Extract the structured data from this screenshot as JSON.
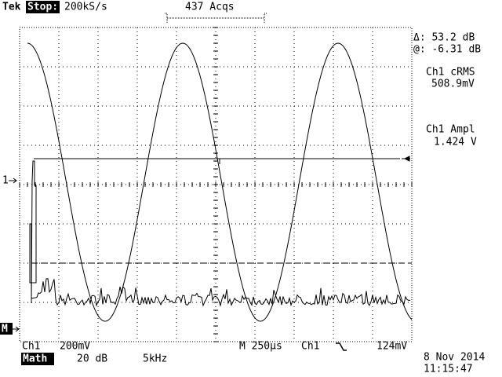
{
  "header": {
    "brand": "Tek",
    "status": "Stop:",
    "sample_rate": "200kS/s",
    "acquisitions": "437 Acqs"
  },
  "readouts": {
    "delta": "Δ: 53.2 dB",
    "at": "@: -6.31 dB",
    "measure1": {
      "label": "Ch1 cRMS",
      "value": "508.9mV"
    },
    "measure2": {
      "label": "Ch1 Ampl",
      "value": "1.424 V"
    }
  },
  "markers": {
    "channel": "1",
    "math": "M"
  },
  "footer": {
    "channel": "Ch1",
    "scale": "200mV",
    "timebase": "M 250µs",
    "trigger_source": "Ch1",
    "trigger_level": "124mV",
    "math": "Math",
    "math_scale": "20 dB",
    "math_freq": "5kHz",
    "date": "8 Nov 2014",
    "time": "11:15:47"
  }
}
